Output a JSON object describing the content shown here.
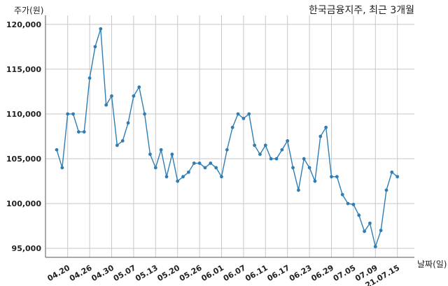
{
  "chart_data": {
    "type": "line",
    "title": "한국금융지주, 최근 3개월",
    "ylabel": "주가(원)",
    "xlabel": "날짜(일)",
    "ylim": [
      94000,
      121000
    ],
    "yticks": [
      95000,
      100000,
      105000,
      110000,
      115000,
      120000
    ],
    "ytick_labels": [
      "95,000",
      "100,000",
      "105,000",
      "110,000",
      "115,000",
      "120,000"
    ],
    "xtick_labels": [
      "04.20",
      "04.26",
      "04.30",
      "05.07",
      "05.13",
      "05.20",
      "05.26",
      "06.01",
      "06.07",
      "06.11",
      "06.17",
      "06.23",
      "06.29",
      "07.05",
      "07.09",
      "21.07.15"
    ],
    "xtick_index": [
      2,
      6,
      10,
      14,
      18,
      22,
      26,
      30,
      34,
      38,
      42,
      46,
      50,
      54,
      58,
      62
    ],
    "grid": true,
    "color": "#2f7db5",
    "series": [
      {
        "values": [
          106000,
          104000,
          110000,
          110000,
          108000,
          108000,
          114000,
          117500,
          119500,
          111000,
          112000,
          106500,
          107000,
          109000,
          112000,
          113000,
          110000,
          105500,
          104000,
          106000,
          103000,
          105500,
          102500,
          103000,
          103500,
          104500,
          104500,
          104000,
          104500,
          104000,
          103000,
          106000,
          108500,
          110000,
          109500,
          110000,
          106500,
          105500,
          106500,
          105000,
          105000,
          106000,
          107000,
          104000,
          101500,
          105000,
          104000,
          102500,
          107500,
          108500,
          103000,
          103000,
          101000,
          100000,
          99900,
          98700,
          96900,
          97800,
          95200,
          97000,
          101500,
          103500,
          103000
        ]
      }
    ]
  }
}
